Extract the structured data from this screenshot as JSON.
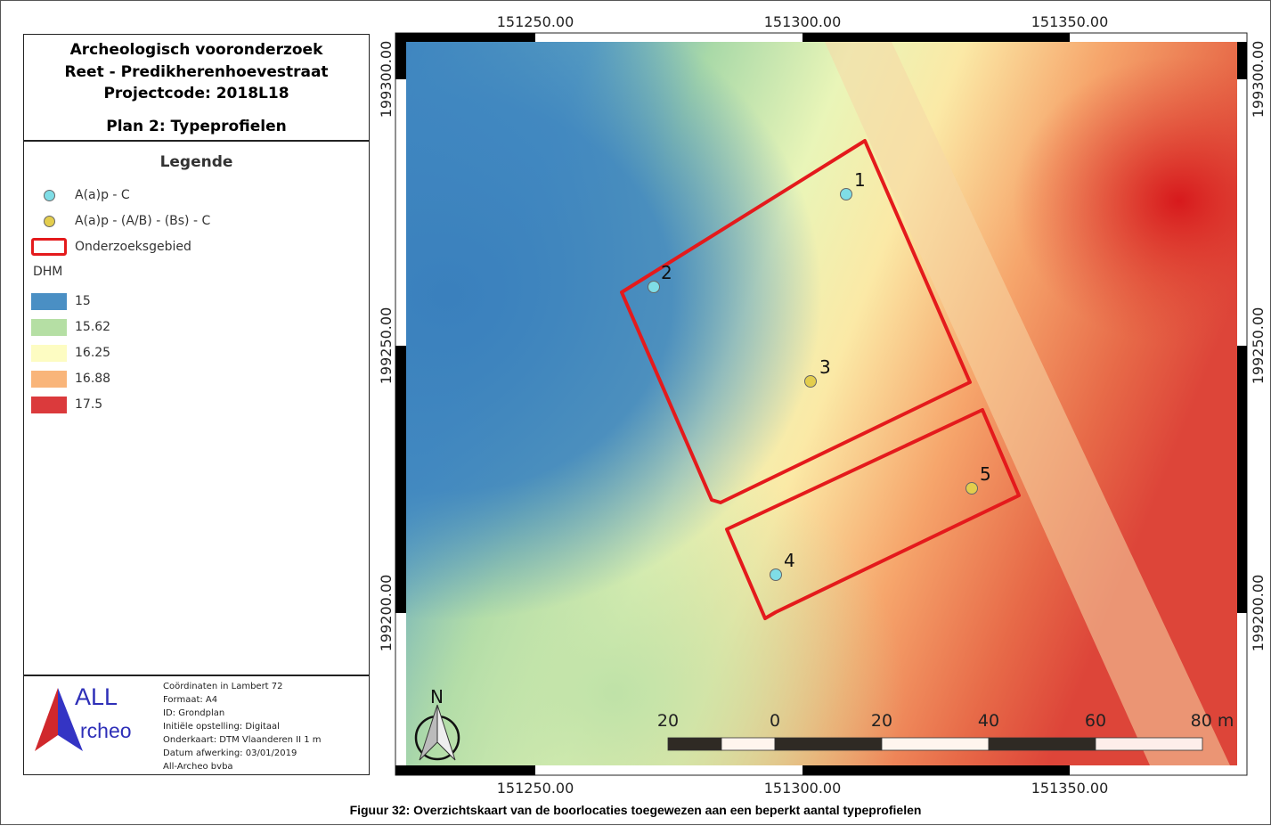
{
  "title_block": {
    "line1": "Archeologisch vooronderzoek",
    "line2": "Reet - Predikherenhoevestraat",
    "line3": "Projectcode: 2018L18",
    "plan": "Plan 2: Typeprofielen"
  },
  "legend": {
    "heading": "Legende",
    "items": [
      {
        "label": "A(a)p - C",
        "color": "#7fdde6"
      },
      {
        "label": "A(a)p - (A/B) - (Bs) - C",
        "color": "#e3cd4d"
      },
      {
        "label": "Onderzoeksgebied",
        "color": "#e41a1c"
      }
    ],
    "dhm_title": "DHM",
    "dhm": [
      {
        "label": "15",
        "color": "#4a8fc4"
      },
      {
        "label": "15.62",
        "color": "#b5dfa4"
      },
      {
        "label": "16.25",
        "color": "#fdfcc2"
      },
      {
        "label": "16.88",
        "color": "#f9b57a"
      },
      {
        "label": "17.5",
        "color": "#db3a3c"
      }
    ]
  },
  "footer": {
    "logo_text_1": "ALL",
    "logo_text_2": "rcheo",
    "info": [
      "Coördinaten in Lambert 72",
      "Formaat: A4",
      "ID: Grondplan",
      "Initiële opstelling: Digitaal",
      "Onderkaart: DTM Vlaanderen II 1 m",
      "Datum afwerking: 03/01/2019",
      "All-Archeo bvba"
    ]
  },
  "map": {
    "x_ticks": [
      "151250.00",
      "151300.00",
      "151350.00"
    ],
    "y_ticks": [
      "199300.00",
      "199250.00",
      "199200.00"
    ],
    "north_label": "N",
    "scalebar_labels": [
      "20",
      "0",
      "20",
      "40",
      "60",
      "80 m"
    ],
    "points": [
      {
        "label": "1",
        "type": "A(a)p - C"
      },
      {
        "label": "2",
        "type": "A(a)p - C"
      },
      {
        "label": "3",
        "type": "A(a)p - (A/B) - (Bs) - C"
      },
      {
        "label": "4",
        "type": "A(a)p - C"
      },
      {
        "label": "5",
        "type": "A(a)p - (A/B) - (Bs) - C"
      }
    ]
  },
  "caption": "Figuur 32: Overzichtskaart van de boorlocaties toegewezen aan een beperkt aantal typeprofielen"
}
